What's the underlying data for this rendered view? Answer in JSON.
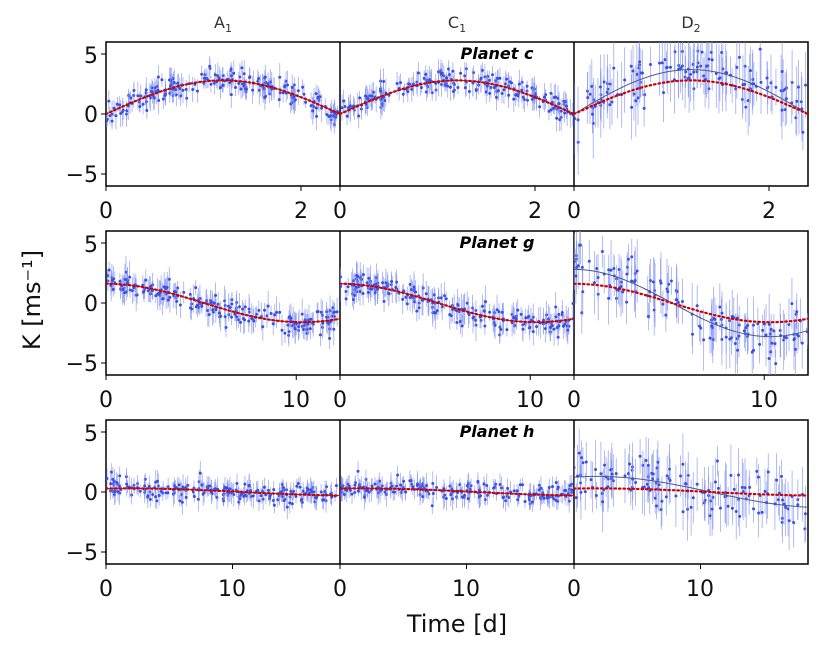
{
  "chart_data": {
    "type": "scatter",
    "ylabel": "K [ms⁻¹]",
    "xlabel": "Time [d]",
    "columns": [
      {
        "label": "A",
        "sub": "1"
      },
      {
        "label": "C",
        "sub": "1"
      },
      {
        "label": "D",
        "sub": "2"
      }
    ],
    "colors": {
      "points": "#3b4fe0",
      "errorbars": "#7f8ff0",
      "model_fit": "#4a5a8a",
      "reference": "#cc0000"
    },
    "panels": [
      {
        "title": "Planet c",
        "period": 4.8,
        "xlim": [
          0,
          2.4
        ],
        "ylim": [
          -6,
          6
        ],
        "xticks": [
          0,
          2
        ],
        "yticks": [
          5,
          0,
          -5
        ],
        "ref_amplitude": 2.8,
        "ref_phase": 0.25,
        "fit_amplitudes": [
          2.8,
          2.8,
          3.7
        ],
        "noise": [
          0.8,
          0.8,
          2.0
        ]
      },
      {
        "title": "Planet g",
        "period": 20.6,
        "xlim": [
          0,
          12.3
        ],
        "ylim": [
          -6,
          6
        ],
        "xticks": [
          0,
          10
        ],
        "yticks": [
          5,
          0,
          -5
        ],
        "ref_amplitude": 1.6,
        "ref_phase": 0.0,
        "fit_amplitudes": [
          1.6,
          1.6,
          2.8
        ],
        "noise": [
          0.9,
          0.9,
          1.8
        ]
      },
      {
        "title": "Planet h",
        "period": 36.0,
        "xlim": [
          0,
          18.5
        ],
        "ylim": [
          -6,
          6
        ],
        "xticks": [
          0,
          10
        ],
        "yticks": [
          5,
          0,
          -5
        ],
        "ref_amplitude": 0.3,
        "ref_phase": 0.05,
        "fit_amplitudes": [
          0.3,
          0.3,
          1.3
        ],
        "noise": [
          0.7,
          0.7,
          1.8
        ]
      }
    ],
    "tick_labels": {
      "p0": {
        "t0": "0",
        "t2": "2"
      },
      "p1": {
        "t0": "0",
        "t10": "10"
      },
      "p2": {
        "t0": "0",
        "t10": "10"
      },
      "y": {
        "p5": "5",
        "z": "0",
        "m5": "−5"
      }
    }
  }
}
